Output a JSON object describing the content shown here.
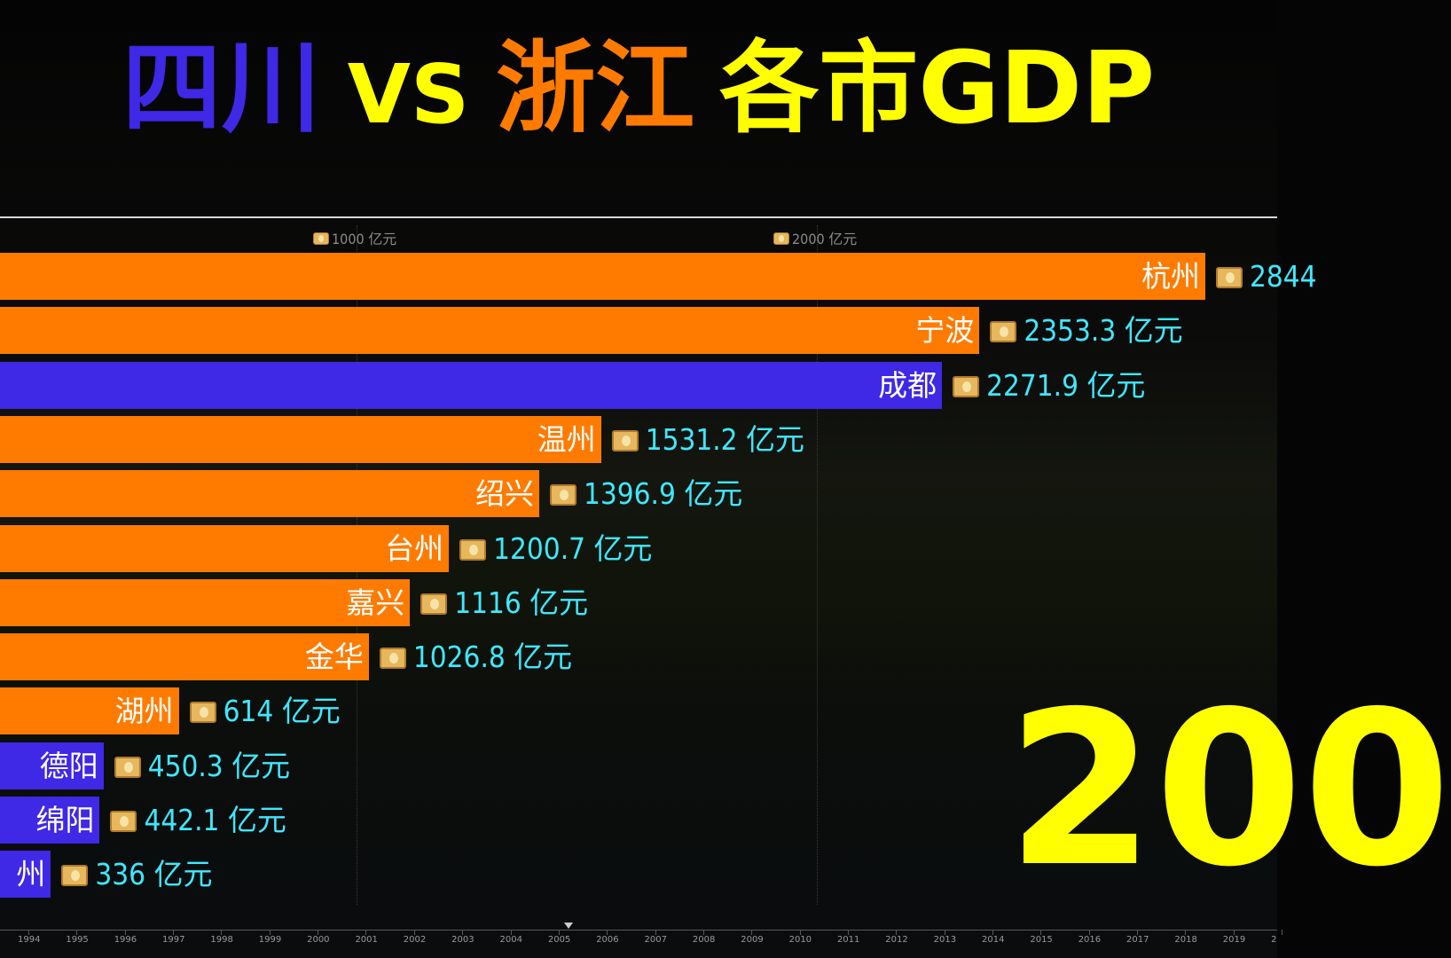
{
  "title": {
    "part1": "四川",
    "part2": "VS",
    "part3": "浙江",
    "part4": "各市GDP"
  },
  "colors": {
    "sichuan": "#3f28e6",
    "zhejiang": "#ff7b00",
    "title_yellow": "#ffff00",
    "value_cyan": "#3ee8ff",
    "year": "#ffff00"
  },
  "chart_data": {
    "type": "bar",
    "orientation": "horizontal",
    "unit": "亿元",
    "axis_ticks": [
      {
        "value": 1000,
        "label": "1000 亿元"
      },
      {
        "value": 2000,
        "label": "2000 亿元"
      }
    ],
    "series_groups": {
      "四川": "sichuan",
      "浙江": "zhejiang"
    },
    "bars": [
      {
        "name": "杭州",
        "value": 2844,
        "value_label": "2844",
        "group": "zhejiang"
      },
      {
        "name": "宁波",
        "value": 2353.3,
        "value_label": "2353.3 亿元",
        "group": "zhejiang"
      },
      {
        "name": "成都",
        "value": 2271.9,
        "value_label": "2271.9 亿元",
        "group": "sichuan"
      },
      {
        "name": "温州",
        "value": 1531.2,
        "value_label": "1531.2 亿元",
        "group": "zhejiang"
      },
      {
        "name": "绍兴",
        "value": 1396.9,
        "value_label": "1396.9 亿元",
        "group": "zhejiang"
      },
      {
        "name": "台州",
        "value": 1200.7,
        "value_label": "1200.7 亿元",
        "group": "zhejiang"
      },
      {
        "name": "嘉兴",
        "value": 1116,
        "value_label": "1116 亿元",
        "group": "zhejiang"
      },
      {
        "name": "金华",
        "value": 1026.8,
        "value_label": "1026.8 亿元",
        "group": "zhejiang"
      },
      {
        "name": "湖州",
        "value": 614,
        "value_label": "614 亿元",
        "group": "zhejiang"
      },
      {
        "name": "德阳",
        "value": 450.3,
        "value_label": "450.3 亿元",
        "group": "sichuan"
      },
      {
        "name": "绵阳",
        "value": 442.1,
        "value_label": "442.1 亿元",
        "group": "sichuan"
      },
      {
        "name": "州",
        "value": 336,
        "value_label": "336 亿元",
        "group": "sichuan"
      }
    ],
    "current_year_label": "200",
    "timeline": {
      "years": [
        "1994",
        "1995",
        "1996",
        "1997",
        "1998",
        "1999",
        "2000",
        "2001",
        "2002",
        "2003",
        "2004",
        "2005",
        "2006",
        "2007",
        "2008",
        "2009",
        "2010",
        "2011",
        "2012",
        "2013",
        "2014",
        "2015",
        "2016",
        "2017",
        "2018",
        "2019",
        "2"
      ],
      "pointer_at": "2005"
    }
  }
}
